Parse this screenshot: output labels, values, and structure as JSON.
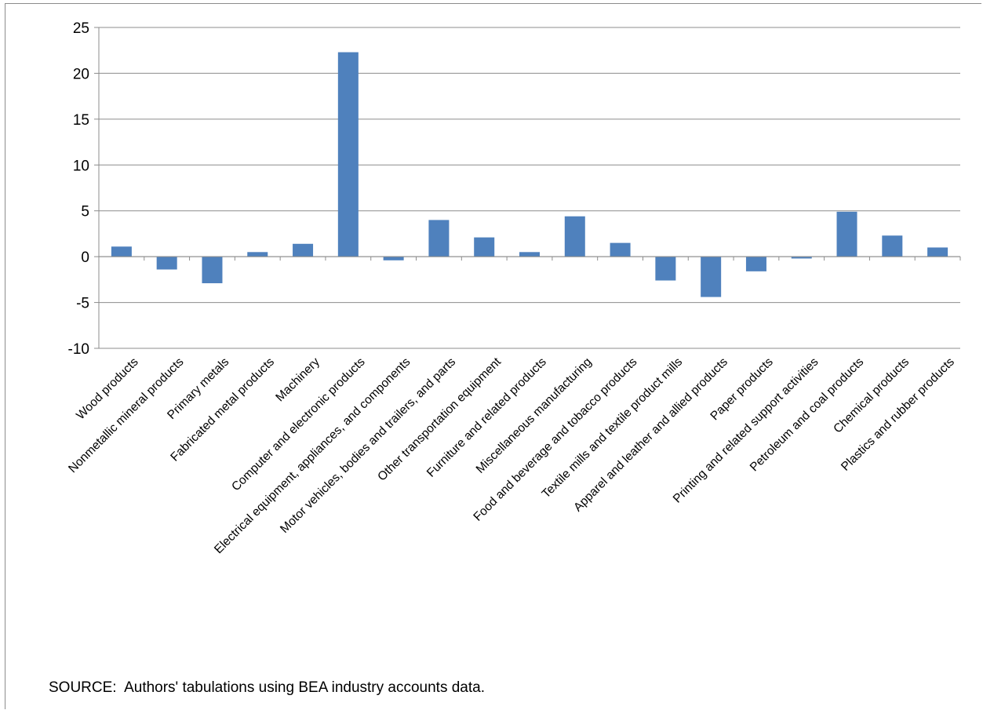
{
  "chart_data": {
    "type": "bar",
    "title": "",
    "xlabel": "",
    "ylabel": "",
    "ylim": [
      -10,
      25
    ],
    "yticks": [
      -10,
      -5,
      0,
      5,
      10,
      15,
      20,
      25
    ],
    "grid": "horizontal",
    "legend": "none",
    "bar_color": "#4f81bd",
    "categories": [
      "Wood products",
      "Nonmetallic mineral products",
      "Primary metals",
      "Fabricated metal products",
      "Machinery",
      "Computer and electronic products",
      "Electrical equipment, appliances, and components",
      "Motor vehicles, bodies and trailers, and parts",
      "Other transportation equipment",
      "Furniture and related products",
      "Miscellaneous manufacturing",
      "Food and beverage and tobacco products",
      "Textile mills and textile product mills",
      "Apparel and leather and allied products",
      "Paper products",
      "Printing and related support activities",
      "Petroleum and coal products",
      "Chemical products",
      "Plastics and rubber products"
    ],
    "values": [
      1.1,
      -1.4,
      -2.9,
      0.5,
      1.4,
      22.3,
      -0.4,
      4.0,
      2.1,
      0.5,
      4.4,
      1.5,
      -2.6,
      -4.4,
      -1.6,
      -0.2,
      4.9,
      2.3,
      1.0
    ]
  },
  "source_note": "SOURCE:  Authors' tabulations using BEA industry accounts data."
}
